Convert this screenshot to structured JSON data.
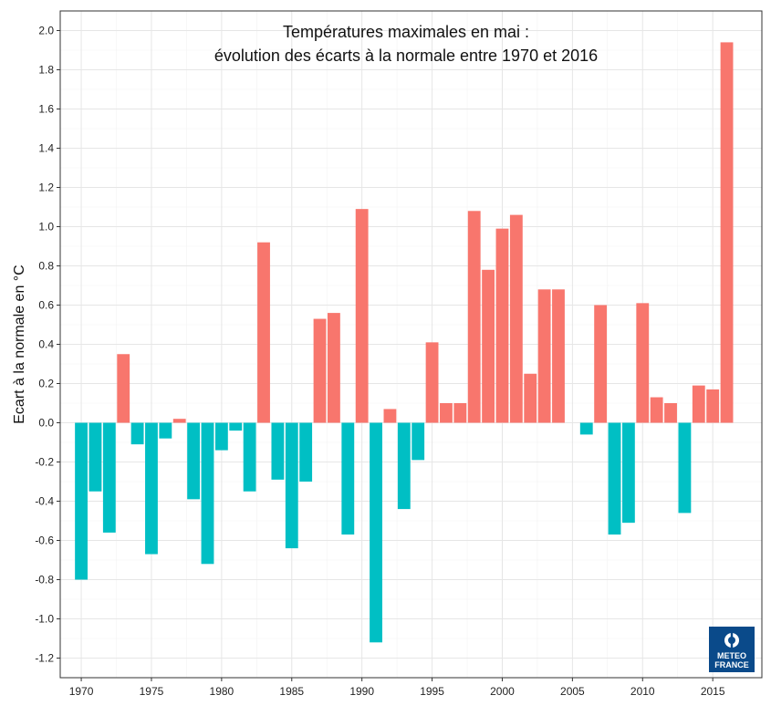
{
  "chart_data": {
    "type": "bar",
    "title_lines": [
      "Températures maximales en mai :",
      "évolution des écarts à la normale entre 1970 et 2016"
    ],
    "xlabel": "",
    "ylabel": "Ecart à la normale en °C",
    "xlim": [
      1968.5,
      2018.5
    ],
    "ylim": [
      -1.3,
      2.1
    ],
    "x_ticks": [
      1970,
      1975,
      1980,
      1985,
      1990,
      1995,
      2000,
      2005,
      2010,
      2015
    ],
    "y_ticks": [
      -1.2,
      -1.0,
      -0.8,
      -0.6,
      -0.4,
      -0.2,
      0.0,
      0.2,
      0.4,
      0.6,
      0.8,
      1.0,
      1.2,
      1.4,
      1.6,
      1.8,
      2.0
    ],
    "y_tick_labels": [
      "-1.2",
      "-1.0",
      "-0.8",
      "-0.6",
      "-0.4",
      "-0.2",
      "0.0",
      "0.2",
      "0.4",
      "0.6",
      "0.8",
      "1.0",
      "1.2",
      "1.4",
      "1.6",
      "1.8",
      "2.0"
    ],
    "grid": true,
    "positive_color": "#f8766d",
    "negative_color": "#00bfc4",
    "grid_color": "#e6e6e6",
    "x": [
      1970,
      1971,
      1972,
      1973,
      1974,
      1975,
      1976,
      1977,
      1978,
      1979,
      1980,
      1981,
      1982,
      1983,
      1984,
      1985,
      1986,
      1987,
      1988,
      1989,
      1990,
      1991,
      1992,
      1993,
      1994,
      1995,
      1996,
      1997,
      1998,
      1999,
      2000,
      2001,
      2002,
      2003,
      2004,
      2005,
      2006,
      2007,
      2008,
      2009,
      2010,
      2011,
      2012,
      2013,
      2014,
      2015,
      2016
    ],
    "values": [
      -0.8,
      -0.35,
      -0.56,
      0.35,
      -0.11,
      -0.67,
      -0.08,
      0.02,
      -0.39,
      -0.72,
      -0.14,
      -0.04,
      -0.35,
      0.92,
      -0.29,
      -0.64,
      -0.3,
      0.53,
      0.56,
      -0.57,
      1.09,
      -1.12,
      0.07,
      -0.44,
      -0.19,
      0.41,
      0.1,
      0.1,
      1.08,
      0.78,
      0.99,
      1.06,
      0.25,
      0.68,
      0.68,
      0.0,
      -0.06,
      0.6,
      -0.57,
      -0.51,
      0.61,
      0.13,
      0.1,
      -0.46,
      0.19,
      0.17,
      1.94
    ]
  },
  "logo": {
    "line1": "METEO",
    "line2": "FRANCE",
    "bg_color": "#0a4a8a"
  }
}
